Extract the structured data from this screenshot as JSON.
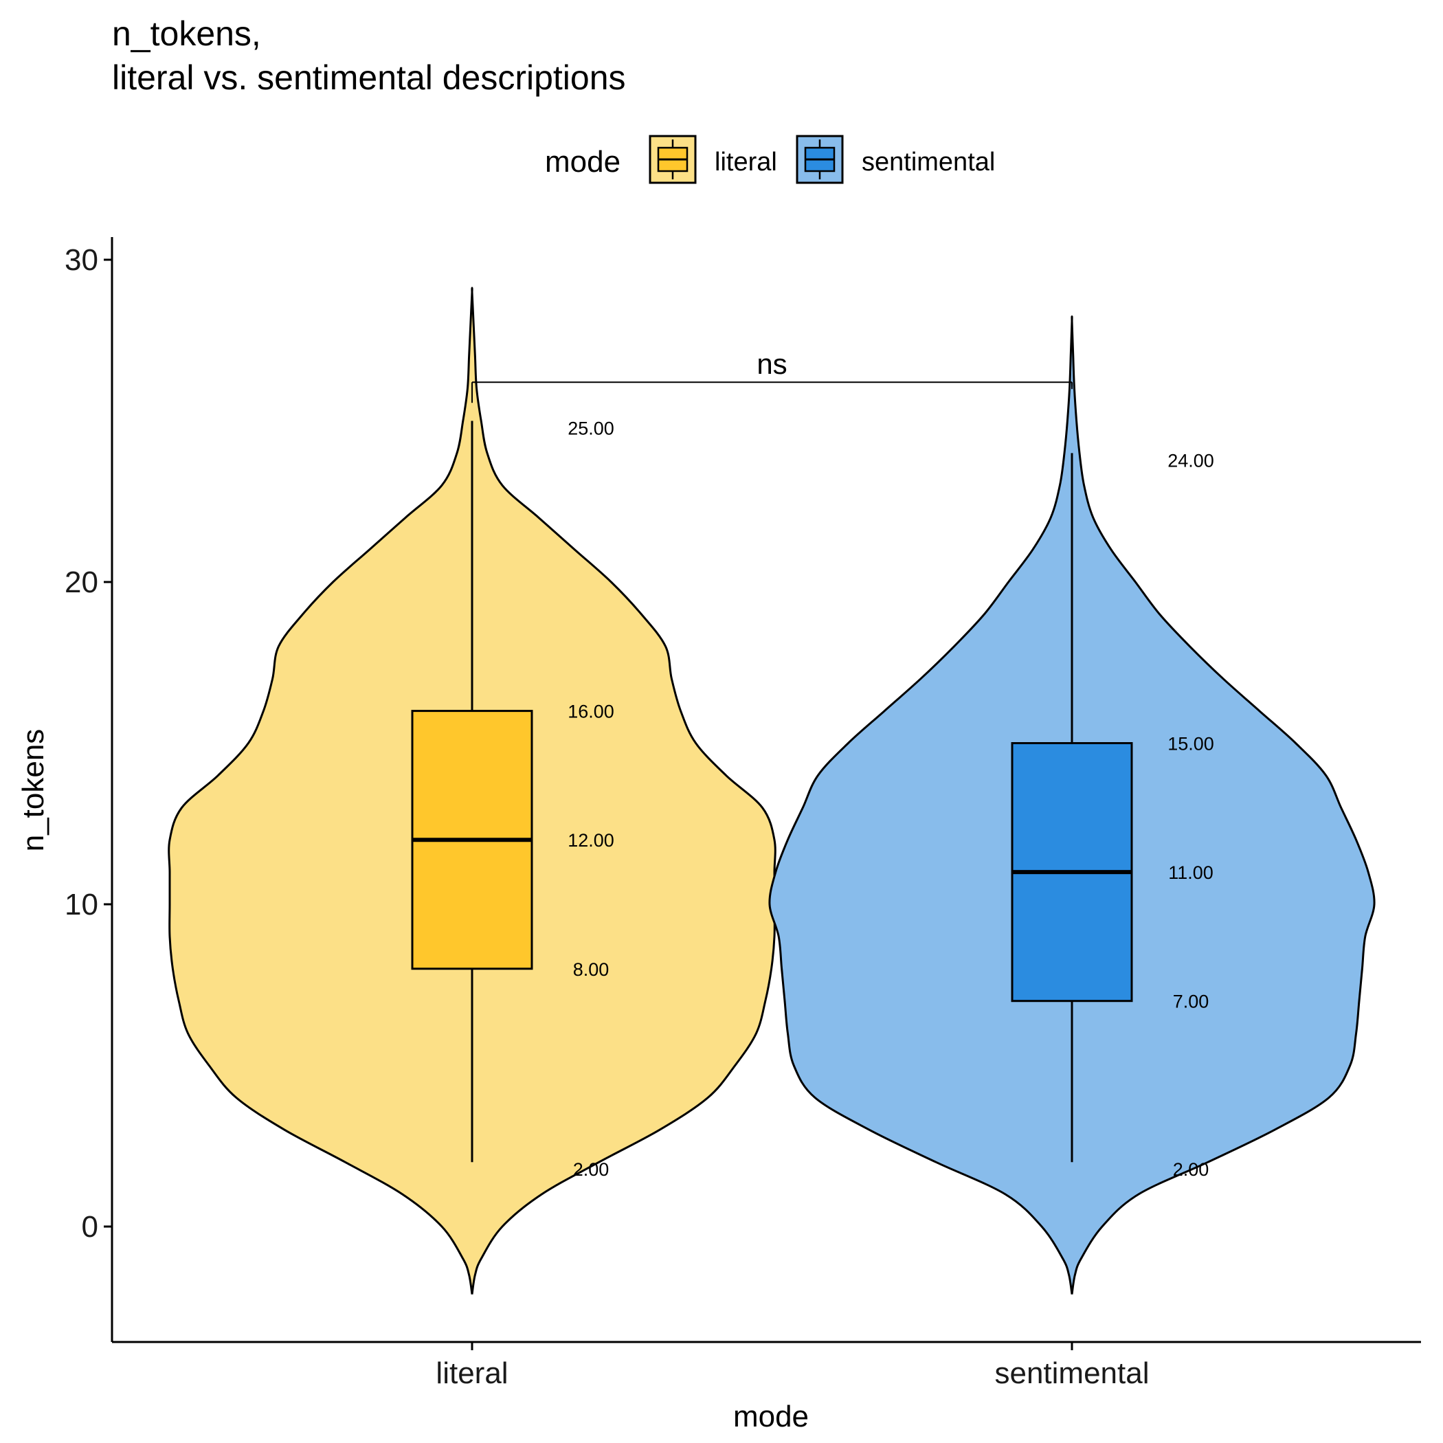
{
  "chart_data": {
    "type": "violin",
    "title": [
      "n_tokens,",
      "literal vs. sentimental descriptions"
    ],
    "xlabel": "mode",
    "ylabel": "n_tokens",
    "ylim": [
      -3.6,
      30.6
    ],
    "yticks": [
      0,
      10,
      20,
      30
    ],
    "categories": [
      "literal",
      "sentimental"
    ],
    "legend": {
      "title": "mode",
      "position": "top",
      "entries": [
        {
          "label": "literal",
          "color": "#FFC72C"
        },
        {
          "label": "sentimental",
          "color": "#2B8CE0"
        }
      ]
    },
    "grid": false,
    "series": [
      {
        "category": "literal",
        "box_color": "#FFC72C",
        "violin_color": "#FCE087",
        "box": {
          "min": 2,
          "q1": 8,
          "median": 12,
          "q3": 16,
          "max": 25
        },
        "labels": [
          "25.00",
          "16.00",
          "12.00",
          "8.00",
          "2.00"
        ],
        "violin_range": [
          -2.1,
          29.0
        ],
        "density": [
          [
            -2.1,
            0.0
          ],
          [
            -1.5,
            0.01
          ],
          [
            -1.0,
            0.03
          ],
          [
            0.0,
            0.1
          ],
          [
            1.0,
            0.23
          ],
          [
            2.0,
            0.42
          ],
          [
            3.0,
            0.62
          ],
          [
            4.0,
            0.78
          ],
          [
            5.0,
            0.87
          ],
          [
            6.0,
            0.94
          ],
          [
            7.0,
            0.97
          ],
          [
            8.0,
            0.99
          ],
          [
            9.0,
            1.0
          ],
          [
            10.0,
            1.0
          ],
          [
            11.0,
            1.0
          ],
          [
            12.0,
            1.0
          ],
          [
            13.0,
            0.96
          ],
          [
            14.0,
            0.84
          ],
          [
            15.0,
            0.74
          ],
          [
            16.0,
            0.69
          ],
          [
            17.0,
            0.66
          ],
          [
            18.0,
            0.64
          ],
          [
            19.0,
            0.56
          ],
          [
            20.0,
            0.46
          ],
          [
            21.0,
            0.34
          ],
          [
            22.0,
            0.22
          ],
          [
            23.0,
            0.1
          ],
          [
            24.0,
            0.05
          ],
          [
            25.0,
            0.03
          ],
          [
            26.0,
            0.015
          ],
          [
            27.0,
            0.01
          ],
          [
            28.0,
            0.005
          ],
          [
            29.0,
            0.0
          ]
        ]
      },
      {
        "category": "sentimental",
        "box_color": "#2B8CE0",
        "violin_color": "#88BCEB",
        "box": {
          "min": 2,
          "q1": 7,
          "median": 11,
          "q3": 15,
          "max": 24
        },
        "labels": [
          "24.00",
          "15.00",
          "11.00",
          "7.00",
          "2.00"
        ],
        "violin_range": [
          -2.1,
          28.1
        ],
        "density": [
          [
            -2.1,
            0.0
          ],
          [
            -1.5,
            0.01
          ],
          [
            -1.0,
            0.03
          ],
          [
            0.0,
            0.1
          ],
          [
            1.0,
            0.22
          ],
          [
            2.0,
            0.45
          ],
          [
            3.0,
            0.67
          ],
          [
            4.0,
            0.85
          ],
          [
            5.0,
            0.92
          ],
          [
            6.0,
            0.94
          ],
          [
            7.0,
            0.95
          ],
          [
            8.0,
            0.96
          ],
          [
            9.0,
            0.97
          ],
          [
            10.0,
            1.0
          ],
          [
            11.0,
            0.98
          ],
          [
            12.0,
            0.94
          ],
          [
            13.0,
            0.89
          ],
          [
            14.0,
            0.84
          ],
          [
            15.0,
            0.74
          ],
          [
            16.0,
            0.62
          ],
          [
            17.0,
            0.5
          ],
          [
            18.0,
            0.39
          ],
          [
            19.0,
            0.29
          ],
          [
            20.0,
            0.21
          ],
          [
            21.0,
            0.13
          ],
          [
            22.0,
            0.07
          ],
          [
            23.0,
            0.04
          ],
          [
            24.0,
            0.025
          ],
          [
            25.0,
            0.015
          ],
          [
            26.0,
            0.008
          ],
          [
            27.0,
            0.004
          ],
          [
            28.1,
            0.0
          ]
        ]
      }
    ],
    "comparison": {
      "from": "literal",
      "to": "sentimental",
      "label": "ns",
      "y": 26.2
    }
  }
}
